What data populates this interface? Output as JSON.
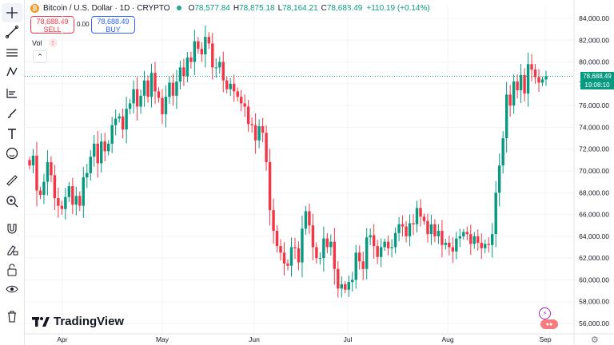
{
  "header": {
    "symbol": "Bitcoin / U.S. Dollar · 1D · CRYPTO",
    "icon": "bitcoin-icon",
    "open_label": "O",
    "open": "78,577.84",
    "high_label": "H",
    "high": "78,875.18",
    "low_label": "L",
    "low": "78,164.21",
    "close_label": "C",
    "close": "78,688.49",
    "change": "+110.19 (+0.14%)"
  },
  "trade": {
    "sell_price": "78,688.49",
    "sell_label": "SELL",
    "spread": "0.00",
    "buy_price": "78,688.49",
    "buy_label": "BUY"
  },
  "volume_label": "Vol",
  "logo_text": "TradingView",
  "price_tag": {
    "price": "78,688.49",
    "countdown": "19:08:10"
  },
  "toolbar": [
    "crosshair-icon",
    "trend-line-icon",
    "fib-icon",
    "pattern-icon",
    "projection-icon",
    "brush-icon",
    "text-icon",
    "emoji-icon",
    "ruler-icon",
    "zoom-icon",
    "magnet-icon",
    "lock-drawing-icon",
    "lock-icon",
    "eye-icon",
    "trash-icon"
  ],
  "colors": {
    "up": "#089981",
    "down": "#f23645",
    "grid": "#f0f3fa",
    "axis_text": "#131722",
    "price_line": "#089981"
  },
  "chart_data": {
    "type": "candlestick",
    "x_ticks": [
      "Apr",
      "May",
      "Jun",
      "Jul",
      "Aug",
      "Sep"
    ],
    "y_ticks": [
      "84,000.00",
      "82,000.00",
      "80,000.00",
      "78,000.00",
      "76,000.00",
      "74,000.00",
      "72,000.00",
      "70,000.00",
      "68,000.00",
      "66,000.00",
      "64,000.00",
      "62,000.00",
      "60,000.00",
      "58,000.00",
      "56,000.00"
    ],
    "ylim": [
      55500,
      85000
    ],
    "last_price": 78688.49,
    "open": 71000,
    "closes": [
      70500,
      71400,
      68200,
      67800,
      69000,
      70800,
      69600,
      67500,
      66800,
      66500,
      67600,
      68600,
      66900,
      67700,
      66800,
      69400,
      69800,
      71300,
      72500,
      70700,
      72700,
      71800,
      72500,
      74200,
      74800,
      75000,
      73800,
      75700,
      76200,
      77500,
      75900,
      76900,
      78300,
      76800,
      79000,
      77300,
      76700,
      75200,
      76800,
      78100,
      76900,
      78200,
      79500,
      78700,
      80400,
      80000,
      81900,
      81200,
      80700,
      82300,
      81700,
      79500,
      79500,
      80000,
      78300,
      77500,
      78000,
      77300,
      76800,
      76200,
      75900,
      74300,
      74200,
      72800,
      74100,
      73500,
      70800,
      66400,
      64500,
      63100,
      62500,
      61500,
      61300,
      63000,
      62900,
      61600,
      64700,
      66300,
      65000,
      63000,
      62000,
      62000,
      63800,
      63000,
      63500,
      61000,
      59200,
      59600,
      59100,
      59800,
      60000,
      62500,
      61700,
      61000,
      63900,
      64100,
      63100,
      62100,
      63000,
      63500,
      62900,
      63000,
      64300,
      65100,
      64900,
      64000,
      65200,
      65100,
      66600,
      65800,
      65400,
      64200,
      65100,
      64000,
      64500,
      63200,
      63400,
      63000,
      62600,
      63800,
      64000,
      64400,
      64200,
      63300,
      64000,
      63400,
      62900,
      63300,
      63200,
      64200,
      68000,
      70500,
      73000,
      77000,
      76000,
      78200,
      77400,
      78800,
      77100,
      79800,
      79300,
      78600,
      78100,
      78400,
      78688.49
    ],
    "up_color": "#089981",
    "down_color": "#f23645",
    "grid": true
  },
  "settings_icon": "settings-icon"
}
